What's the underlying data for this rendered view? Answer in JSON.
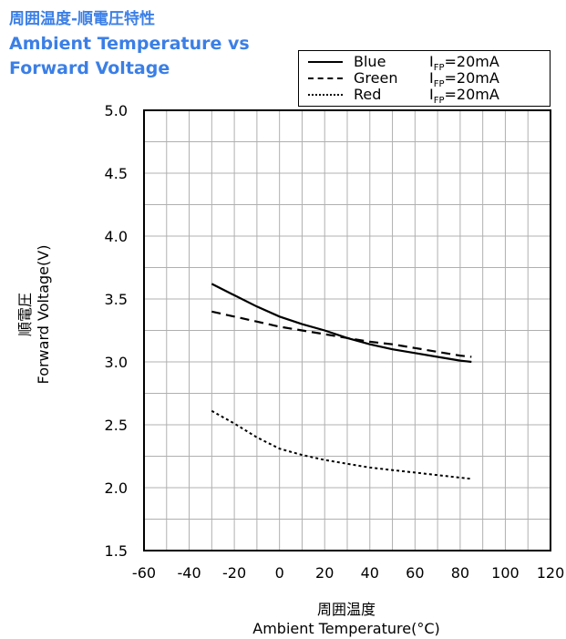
{
  "title": {
    "jp": "周囲温度-順電圧特性",
    "en_line1": "Ambient Temperature vs",
    "en_line2": "Forward Voltage"
  },
  "legend": {
    "placement": "top-right",
    "items": [
      {
        "name": "Blue",
        "cond_prefix": "I",
        "cond_sub": "FP",
        "cond_value": "=20mA",
        "style": "solid"
      },
      {
        "name": "Green",
        "cond_prefix": "I",
        "cond_sub": "FP",
        "cond_value": "=20mA",
        "style": "dashed"
      },
      {
        "name": "Red",
        "cond_prefix": "I",
        "cond_sub": "FP",
        "cond_value": "=20mA",
        "style": "dotted"
      }
    ]
  },
  "colors": {
    "title": "#3b7fe6",
    "grid": "#b0b0b0",
    "series": "#000000"
  },
  "chart_data": {
    "type": "line",
    "xlabel_jp": "周囲温度",
    "xlabel": "Ambient Temperature(°C)",
    "ylabel_jp": "順電圧",
    "ylabel": "Forward Voltage(V)",
    "xlim": [
      -60,
      120
    ],
    "ylim": [
      1.5,
      5.0
    ],
    "x_ticks": [
      "-60",
      "-40",
      "-20",
      "0",
      "20",
      "40",
      "60",
      "80",
      "100",
      "120"
    ],
    "x_tick_values": [
      -60,
      -40,
      -20,
      0,
      20,
      40,
      60,
      80,
      100,
      120
    ],
    "y_ticks": [
      "1.5",
      "2.0",
      "2.5",
      "3.0",
      "3.5",
      "4.0",
      "4.5",
      "5.0"
    ],
    "y_tick_values": [
      1.5,
      2.0,
      2.5,
      3.0,
      3.5,
      4.0,
      4.5,
      5.0
    ],
    "grid": true,
    "x_minor_step": 10,
    "y_minor_step": 0.25,
    "series": [
      {
        "name": "Blue",
        "style": "solid",
        "x": [
          -30,
          -20,
          -10,
          0,
          10,
          20,
          30,
          40,
          50,
          60,
          70,
          80,
          85
        ],
        "y": [
          3.62,
          3.53,
          3.44,
          3.36,
          3.3,
          3.25,
          3.19,
          3.14,
          3.1,
          3.07,
          3.04,
          3.01,
          3.0
        ]
      },
      {
        "name": "Green",
        "style": "dashed",
        "x": [
          -30,
          -20,
          -10,
          0,
          10,
          20,
          30,
          40,
          50,
          60,
          70,
          80,
          85
        ],
        "y": [
          3.4,
          3.36,
          3.32,
          3.28,
          3.25,
          3.22,
          3.19,
          3.16,
          3.14,
          3.11,
          3.08,
          3.05,
          3.04
        ]
      },
      {
        "name": "Red",
        "style": "dotted",
        "x": [
          -30,
          -20,
          -10,
          0,
          10,
          20,
          30,
          40,
          50,
          60,
          70,
          80,
          85
        ],
        "y": [
          2.61,
          2.51,
          2.4,
          2.31,
          2.26,
          2.22,
          2.19,
          2.16,
          2.14,
          2.12,
          2.1,
          2.08,
          2.07
        ]
      }
    ]
  }
}
